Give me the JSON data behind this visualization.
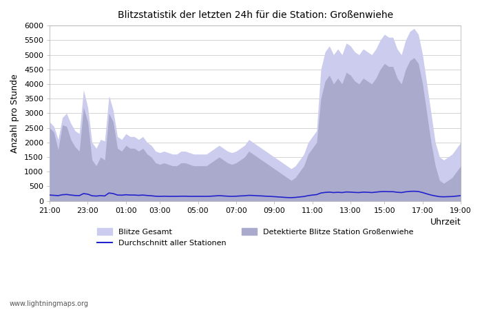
{
  "title": "Blitzstatistik der letzten 24h für die Station: Großenwiehe",
  "xlabel": "Uhrzeit",
  "ylabel": "Anzahl pro Stunde",
  "ylim": [
    0,
    6000
  ],
  "yticks": [
    0,
    500,
    1000,
    1500,
    2000,
    2500,
    3000,
    3500,
    4000,
    4500,
    5000,
    5500,
    6000
  ],
  "xtick_labels": [
    "21:00",
    "23:00",
    "01:00",
    "03:00",
    "05:00",
    "07:00",
    "09:00",
    "11:00",
    "13:00",
    "15:00",
    "17:00",
    "19:00"
  ],
  "watermark": "www.lightningmaps.org",
  "bg_color": "#ffffff",
  "plot_bg_color": "#ffffff",
  "grid_color": "#cccccc",
  "fill_gesamt_color": "#ccccee",
  "fill_station_color": "#aaaacc",
  "line_color": "#2222cc",
  "legend_labels": [
    "Blitze Gesamt",
    "Durchschnitt aller Stationen",
    "Detektierte Blitze Station Großenwiehe"
  ],
  "gesamt": [
    2700,
    2550,
    2100,
    2850,
    3000,
    2650,
    2400,
    2300,
    3800,
    3200,
    2000,
    1800,
    2100,
    2050,
    3600,
    3100,
    2200,
    2100,
    2300,
    2200,
    2200,
    2100,
    2200,
    2000,
    1900,
    1700,
    1650,
    1700,
    1650,
    1600,
    1600,
    1700,
    1700,
    1650,
    1600,
    1600,
    1600,
    1600,
    1700,
    1800,
    1900,
    1800,
    1700,
    1650,
    1700,
    1800,
    1900,
    2100,
    2000,
    1900,
    1800,
    1700,
    1600,
    1500,
    1400,
    1300,
    1200,
    1100,
    1200,
    1400,
    1600,
    2000,
    2200,
    2400,
    4500,
    5100,
    5300,
    5000,
    5200,
    5000,
    5400,
    5300,
    5100,
    5000,
    5200,
    5100,
    5000,
    5200,
    5500,
    5700,
    5600,
    5600,
    5200,
    5000,
    5500,
    5800,
    5900,
    5700,
    5000,
    4000,
    3000,
    2000,
    1500,
    1400,
    1500,
    1600,
    1800,
    2000
  ],
  "station": [
    2500,
    2350,
    1750,
    2600,
    2550,
    2100,
    1850,
    1700,
    3200,
    2700,
    1400,
    1200,
    1500,
    1400,
    3000,
    2700,
    1800,
    1700,
    1900,
    1800,
    1800,
    1700,
    1800,
    1600,
    1500,
    1300,
    1250,
    1300,
    1250,
    1200,
    1200,
    1300,
    1300,
    1250,
    1200,
    1200,
    1200,
    1200,
    1300,
    1400,
    1500,
    1400,
    1300,
    1250,
    1300,
    1400,
    1500,
    1700,
    1600,
    1500,
    1400,
    1300,
    1200,
    1100,
    1000,
    900,
    800,
    700,
    800,
    1000,
    1200,
    1600,
    1800,
    2000,
    3500,
    4100,
    4300,
    4000,
    4200,
    4000,
    4400,
    4300,
    4100,
    4000,
    4200,
    4100,
    4000,
    4200,
    4500,
    4700,
    4600,
    4600,
    4200,
    4000,
    4500,
    4800,
    4900,
    4700,
    4000,
    3000,
    2000,
    1200,
    700,
    600,
    700,
    800,
    1000,
    1200
  ],
  "avg_line": [
    200,
    190,
    180,
    210,
    220,
    200,
    185,
    180,
    250,
    230,
    175,
    165,
    180,
    170,
    270,
    250,
    200,
    195,
    210,
    200,
    200,
    190,
    200,
    185,
    175,
    160,
    155,
    160,
    155,
    155,
    155,
    160,
    160,
    155,
    155,
    155,
    155,
    155,
    160,
    170,
    180,
    170,
    160,
    155,
    160,
    170,
    175,
    190,
    185,
    175,
    170,
    160,
    155,
    145,
    135,
    125,
    115,
    110,
    120,
    135,
    150,
    180,
    200,
    215,
    270,
    290,
    300,
    285,
    295,
    285,
    305,
    300,
    290,
    285,
    300,
    295,
    285,
    300,
    315,
    320,
    315,
    315,
    295,
    285,
    310,
    325,
    330,
    320,
    285,
    240,
    200,
    170,
    145,
    140,
    145,
    150,
    165,
    180
  ]
}
